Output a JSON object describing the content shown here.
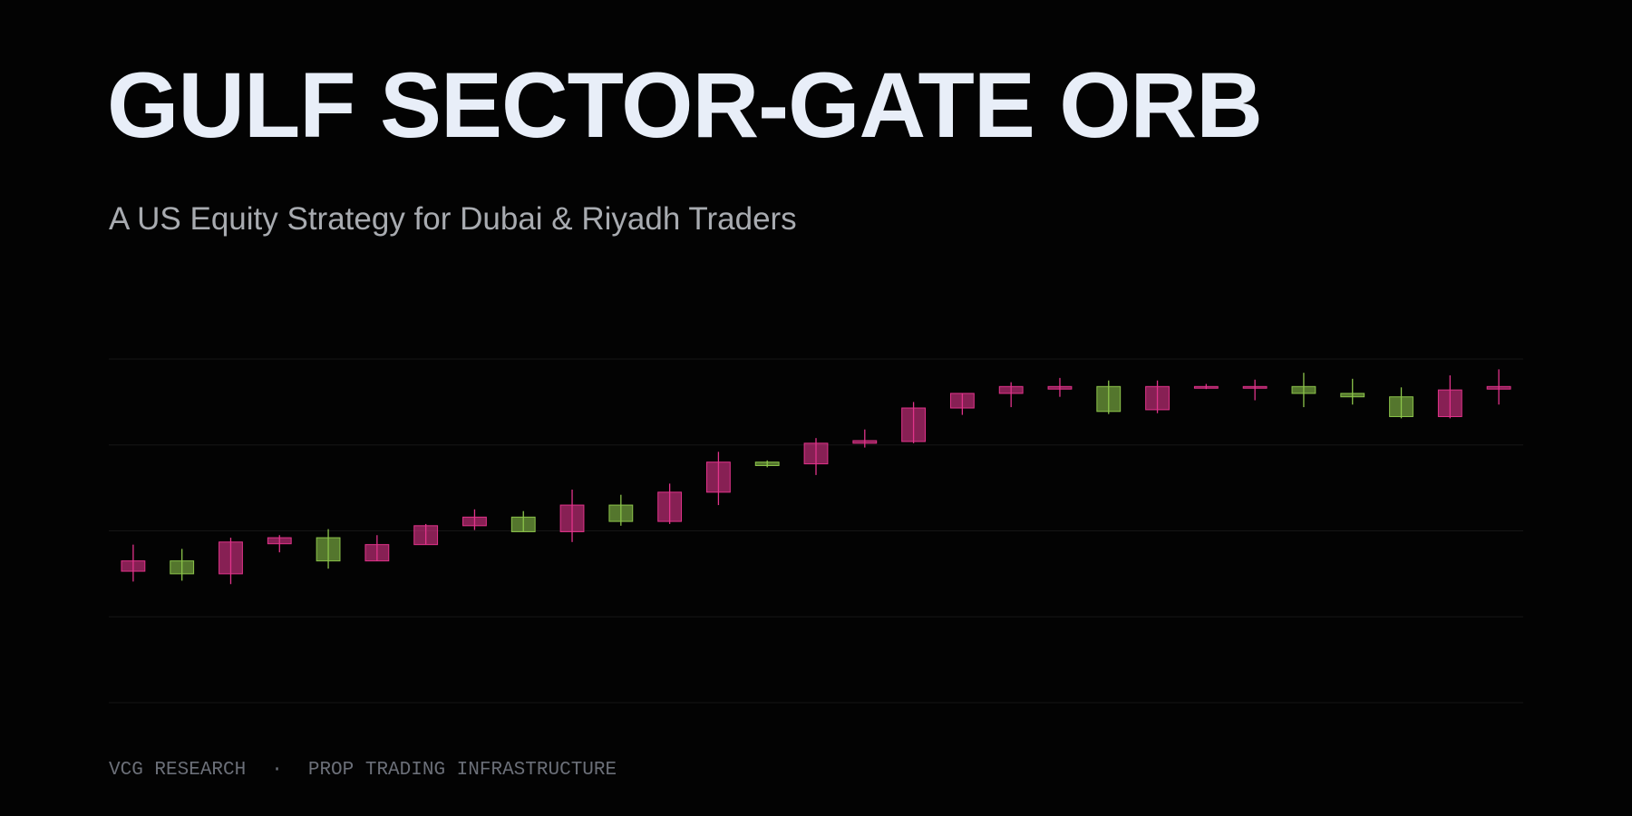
{
  "chart_data": {
    "type": "candlestick",
    "title": "GULF SECTOR-GATE ORB",
    "subtitle": "A US Equity Strategy for Dubai & Riyadh Traders",
    "categories": [
      null,
      null,
      null,
      null,
      null,
      null,
      null,
      null,
      null,
      null,
      null,
      null,
      null,
      null,
      null,
      null,
      null,
      null,
      null,
      null,
      null,
      null,
      null,
      null,
      null,
      null,
      null,
      null,
      null
    ],
    "open": [
      1.53,
      1.65,
      1.5,
      1.85,
      1.92,
      1.65,
      1.84,
      2.06,
      2.16,
      1.99,
      2.3,
      2.11,
      2.45,
      2.8,
      2.78,
      3.02,
      3.04,
      3.43,
      3.6,
      3.65,
      3.68,
      3.41,
      3.66,
      3.66,
      3.68,
      3.6,
      3.56,
      3.33,
      3.65
    ],
    "high": [
      1.84,
      1.79,
      1.92,
      1.95,
      2.02,
      1.95,
      2.08,
      2.25,
      2.23,
      2.48,
      2.42,
      2.55,
      2.92,
      2.82,
      3.08,
      3.18,
      3.5,
      3.6,
      3.73,
      3.78,
      3.75,
      3.75,
      3.71,
      3.76,
      3.84,
      3.77,
      3.67,
      3.81,
      3.88
    ],
    "low": [
      1.41,
      1.42,
      1.38,
      1.75,
      1.56,
      1.65,
      1.84,
      2.01,
      1.99,
      1.87,
      2.06,
      2.08,
      2.3,
      2.74,
      2.65,
      2.97,
      3.02,
      3.35,
      3.44,
      3.56,
      3.36,
      3.37,
      3.65,
      3.52,
      3.44,
      3.47,
      3.31,
      3.31,
      3.47
    ],
    "close": [
      1.65,
      1.5,
      1.87,
      1.92,
      1.65,
      1.84,
      2.06,
      2.16,
      1.99,
      2.3,
      2.11,
      2.45,
      2.8,
      2.76,
      3.02,
      3.05,
      3.43,
      3.6,
      3.68,
      3.68,
      3.39,
      3.68,
      3.68,
      3.68,
      3.6,
      3.56,
      3.33,
      3.64,
      3.68
    ],
    "up_color": "#e0338a",
    "down_color": "#8bc34a",
    "ylim": [
      0,
      4
    ],
    "yticks": [
      0,
      1,
      2,
      3,
      4
    ],
    "grid": true
  },
  "footer": [
    "VCG RESEARCH",
    "·",
    "PROP TRADING INFRASTRUCTURE"
  ]
}
